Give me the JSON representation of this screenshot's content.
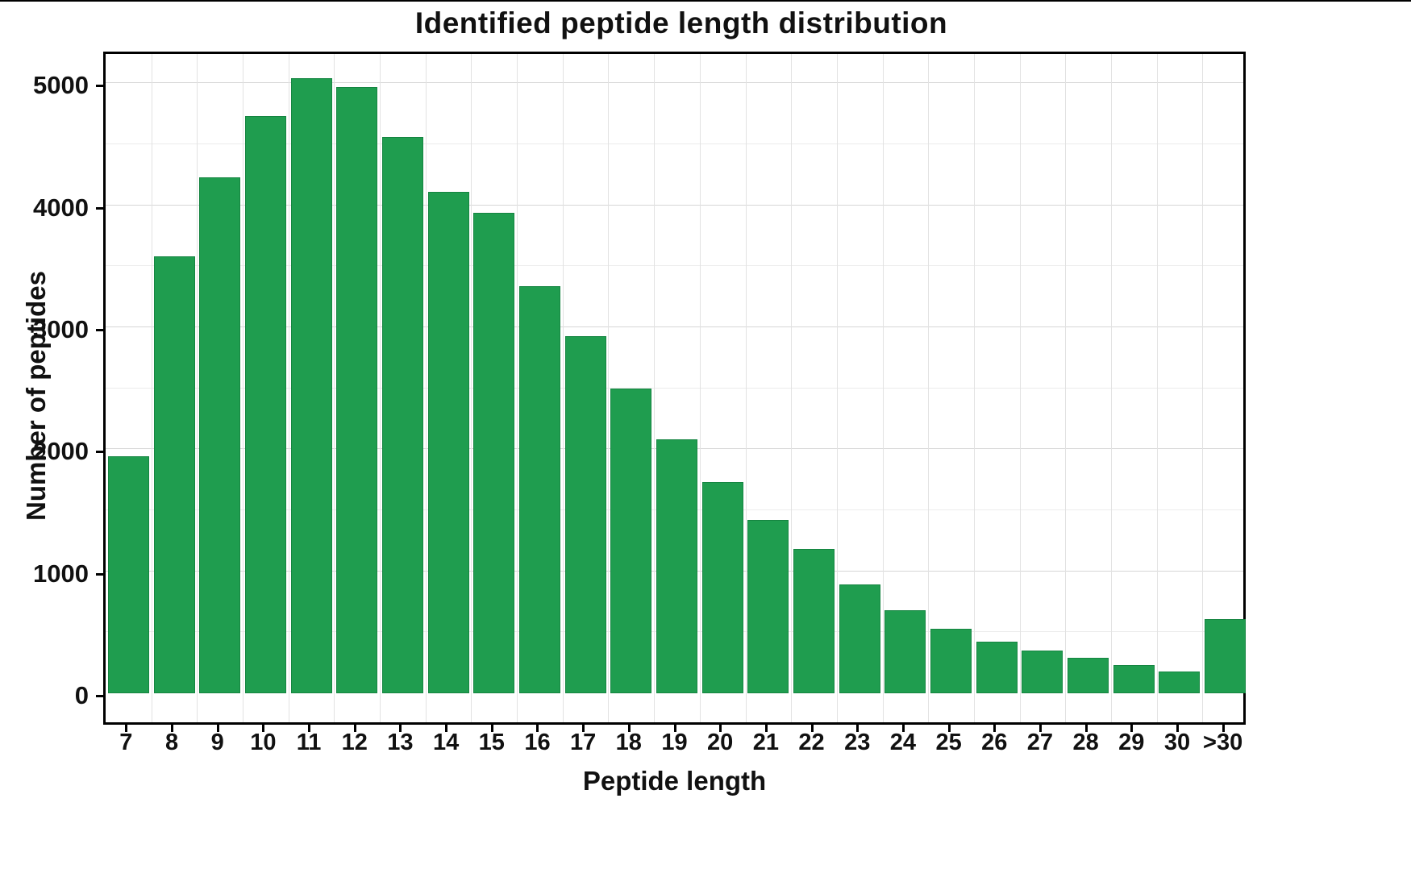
{
  "chart_data": {
    "type": "bar",
    "title": "Identified peptide length distribution",
    "xlabel": "Peptide length",
    "ylabel": "Number of peptides",
    "categories": [
      "7",
      "8",
      "9",
      "10",
      "11",
      "12",
      "13",
      "14",
      "15",
      "16",
      "17",
      "18",
      "19",
      "20",
      "21",
      "22",
      "23",
      "24",
      "25",
      "26",
      "27",
      "28",
      "29",
      "30",
      ">30"
    ],
    "values": [
      1940,
      3580,
      4230,
      4730,
      5040,
      4970,
      4560,
      4110,
      3940,
      3340,
      2930,
      2500,
      2080,
      1730,
      1420,
      1180,
      890,
      680,
      530,
      420,
      350,
      290,
      230,
      180,
      610
    ],
    "ylim": [
      0,
      5280
    ],
    "yticks": [
      0,
      1000,
      2000,
      3000,
      4000,
      5000
    ],
    "grid": "on",
    "legend": "none",
    "bar_color": "#1f9d4f"
  }
}
